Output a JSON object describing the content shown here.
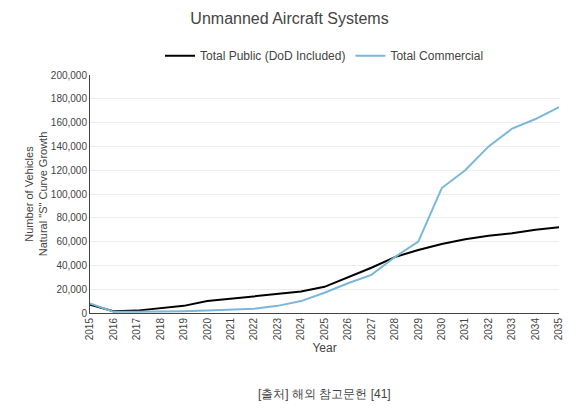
{
  "chart_data": {
    "type": "line",
    "title": "Unmanned Aircraft Systems",
    "xlabel": "Year",
    "ylabel": [
      "Number of Vehicles",
      "Natural \"S\" Curve Growth"
    ],
    "annotations": [
      "[출처] 해외 참고문헌 [41]"
    ],
    "x": [
      2015,
      2016,
      2017,
      2018,
      2019,
      2020,
      2021,
      2022,
      2023,
      2024,
      2025,
      2026,
      2027,
      2028,
      2029,
      2030,
      2031,
      2032,
      2033,
      2034,
      2035
    ],
    "series": [
      {
        "name": "Total Public (DoD Included)",
        "color": "#000000",
        "values": [
          7000,
          1500,
          2000,
          4000,
          6000,
          10000,
          12000,
          14000,
          16000,
          18000,
          22000,
          30000,
          38000,
          47000,
          53000,
          58000,
          62000,
          65000,
          67000,
          70000,
          72000
        ]
      },
      {
        "name": "Total Commercial",
        "color": "#7ab8d9",
        "values": [
          8000,
          1000,
          1000,
          1000,
          1500,
          2000,
          2500,
          3500,
          6000,
          10000,
          17000,
          25000,
          32000,
          47000,
          60000,
          105000,
          120000,
          140000,
          155000,
          163000,
          173000
        ]
      }
    ],
    "xlim": [
      2015,
      2035
    ],
    "xticks": [
      2015,
      2016,
      2017,
      2018,
      2019,
      2020,
      2021,
      2022,
      2023,
      2024,
      2025,
      2026,
      2027,
      2028,
      2029,
      2030,
      2031,
      2032,
      2033,
      2034,
      2035
    ],
    "ylim": [
      0,
      200000
    ],
    "yticks": [
      0,
      {
        "value": 20000,
        "label": "20,000"
      },
      {
        "value": 40000,
        "label": "40,000"
      },
      {
        "value": 60000,
        "label": "60,000"
      },
      {
        "value": 80000,
        "label": "80,000"
      },
      {
        "value": 100000,
        "label": "100,000"
      },
      {
        "value": 120000,
        "label": "120,000"
      },
      {
        "value": 140000,
        "label": "140,000"
      },
      {
        "value": 160000,
        "label": "160,000"
      },
      {
        "value": 180000,
        "label": "180,000"
      },
      {
        "value": 200000,
        "label": "200,000"
      }
    ],
    "grid": true,
    "legend": "top"
  }
}
